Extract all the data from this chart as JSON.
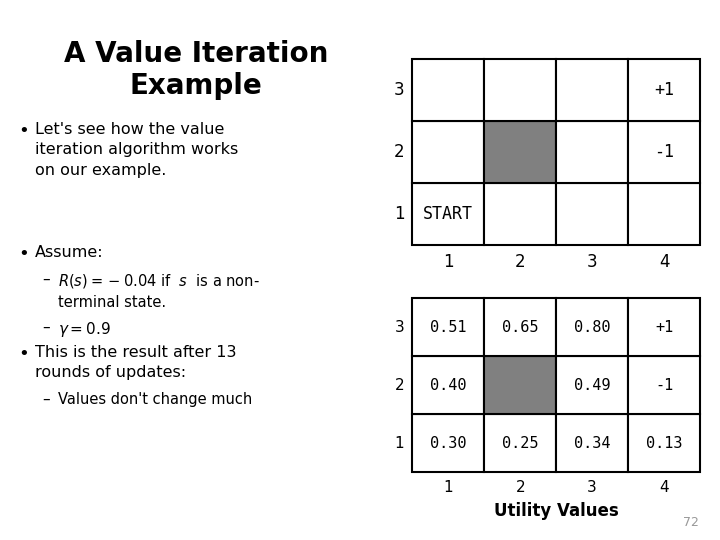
{
  "title_line1": "A Value Iteration",
  "title_line2": "Example",
  "title_fontsize": 20,
  "background_color": "#ffffff",
  "grid_color": "#000000",
  "wall_color": "#808080",
  "text_color": "#000000",
  "gray_color": "#999999",
  "page_number": "72",
  "top_grid": {
    "rows": 3,
    "cols": 4,
    "wall_cell": [
      2,
      2
    ],
    "special_cells": {
      "3,4": "+1",
      "2,4": "-1",
      "1,1": "START"
    },
    "row_labels": [
      "1",
      "2",
      "3"
    ],
    "col_labels": [
      "1",
      "2",
      "3",
      "4"
    ]
  },
  "bottom_grid": {
    "rows": 3,
    "cols": 4,
    "wall_cell": [
      2,
      2
    ],
    "values": {
      "3,1": "0.51",
      "3,2": "0.65",
      "3,3": "0.80",
      "3,4": "+1",
      "2,1": "0.40",
      "2,3": "0.49",
      "2,4": "-1",
      "1,1": "0.30",
      "1,2": "0.25",
      "1,3": "0.34",
      "1,4": "0.13"
    },
    "row_labels": [
      "1",
      "2",
      "3"
    ],
    "col_labels": [
      "1",
      "2",
      "3",
      "4"
    ],
    "xlabel": "Utility Values"
  }
}
